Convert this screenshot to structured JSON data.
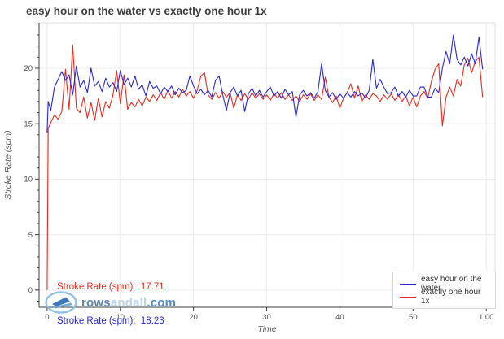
{
  "title": "easy hour on the water vs exactly one hour 1x",
  "colors": {
    "blue_series": "#2828d7",
    "red_series": "#ea2a1e",
    "gridline": "#ececec",
    "plot_border": "#e2e2e2",
    "axis_line": "#3c3c3c",
    "tick_label": "#4c4c4c"
  },
  "y_axis": {
    "label": "Stroke Rate (spm)",
    "major_tick_values": [
      0,
      5,
      10,
      15,
      20
    ],
    "major_tick_labels": [
      "0",
      "5",
      "10",
      "15",
      "20"
    ],
    "minor_tick_step": 1
  },
  "x_axis": {
    "label": "Time",
    "major_tick_values": [
      0,
      10,
      20,
      30,
      40,
      50,
      60
    ],
    "major_tick_labels": [
      "0",
      "10",
      "20",
      "30",
      "40",
      "50",
      "1:00"
    ]
  },
  "annotations": [
    {
      "text": "Stroke Rate (spm):  17.71",
      "series": "exactly one hour 1x",
      "color": "#ea2a1e"
    },
    {
      "text": "Stroke Rate (spm):  18.23",
      "series": "easy hour on the water",
      "color": "#2828d7"
    }
  ],
  "legend": {
    "items": [
      {
        "label": "easy hour on the water",
        "color": "#2828d7"
      },
      {
        "label": "exactly one hour 1x",
        "color": "#ea2a1e"
      }
    ]
  },
  "watermark": {
    "rows": "rows",
    "andall": "andall",
    "com": ".com"
  },
  "chart_data": {
    "type": "line",
    "title": "easy hour on the water vs exactly one hour 1x",
    "xlabel": "Time",
    "ylabel": "Stroke Rate (spm)",
    "x_unit": "minutes",
    "xlim": [
      -1.1,
      61.2
    ],
    "ylim": [
      -1.55,
      24.1
    ],
    "grid": true,
    "legend_position": "bottom-right",
    "x_tick_labels": [
      "0",
      "10",
      "20",
      "30",
      "40",
      "50",
      "1:00"
    ],
    "x": [
      0,
      0.15,
      0.5,
      1,
      1.5,
      2,
      2.5,
      3,
      3.5,
      4,
      4.5,
      5,
      5.5,
      6,
      6.5,
      7,
      7.5,
      8,
      8.5,
      9,
      9.5,
      10,
      10.5,
      11,
      11.5,
      12,
      12.5,
      13,
      13.5,
      14,
      14.5,
      15,
      15.5,
      16,
      16.5,
      17,
      17.5,
      18,
      18.5,
      19,
      19.5,
      20,
      20.5,
      21,
      21.5,
      22,
      22.5,
      23,
      23.5,
      24,
      24.5,
      25,
      25.5,
      26,
      26.5,
      27,
      27.5,
      28,
      28.5,
      29,
      29.5,
      30,
      30.5,
      31,
      31.5,
      32,
      32.5,
      33,
      33.5,
      34,
      34.5,
      35,
      35.5,
      36,
      36.5,
      37,
      37.5,
      38,
      38.5,
      39,
      39.5,
      40,
      40.5,
      41,
      41.5,
      42,
      42.5,
      43,
      43.5,
      44,
      44.5,
      45,
      45.5,
      46,
      46.5,
      47,
      47.5,
      48,
      48.5,
      49,
      49.5,
      50,
      50.5,
      51,
      51.5,
      52,
      52.5,
      53,
      53.5,
      54,
      54.5,
      55,
      55.5,
      56,
      56.5,
      57,
      57.5,
      58,
      58.5,
      59,
      59.5
    ],
    "series": [
      {
        "name": "easy hour on the water",
        "color": "#2828d7",
        "average_spm": 18.23,
        "values": [
          14.2,
          17.0,
          16.2,
          18.3,
          19.0,
          19.7,
          18.9,
          19.4,
          17.6,
          20.2,
          18.3,
          18.9,
          17.8,
          20.0,
          18.4,
          18.8,
          17.9,
          19.1,
          18.3,
          18.7,
          17.9,
          19.8,
          18.5,
          19.1,
          18.3,
          19.3,
          18.1,
          18.5,
          17.5,
          18.8,
          18.2,
          18.4,
          17.7,
          18.3,
          17.9,
          18.4,
          17.6,
          18.2,
          17.8,
          18.0,
          19.3,
          18.4,
          17.7,
          18.1,
          17.6,
          18.0,
          17.4,
          18.9,
          19.3,
          17.6,
          16.2,
          17.8,
          18.3,
          17.5,
          18.0,
          16.1,
          17.7,
          18.2,
          17.5,
          18.0,
          17.4,
          17.9,
          18.3,
          17.5,
          17.9,
          17.3,
          18.1,
          17.6,
          17.9,
          15.6,
          17.6,
          18.0,
          17.5,
          17.8,
          17.3,
          17.9,
          20.4,
          18.0,
          17.4,
          17.8,
          17.2,
          17.7,
          17.3,
          17.8,
          17.4,
          17.9,
          17.5,
          17.8,
          17.3,
          18.0,
          20.8,
          18.2,
          19.0,
          18.3,
          17.7,
          17.8,
          18.3,
          17.5,
          17.9,
          17.4,
          18.0,
          17.5,
          17.5,
          18.3,
          18.3,
          17.4,
          17.4,
          18.2,
          17.8,
          20.0,
          21.5,
          20.4,
          23.0,
          20.8,
          20.3,
          21.0,
          20.2,
          21.3,
          20.4,
          22.8,
          19.9
        ]
      },
      {
        "name": "exactly one hour 1x",
        "color": "#ea2a1e",
        "average_spm": 17.71,
        "values": [
          0,
          14.6,
          15.1,
          15.8,
          15.4,
          16.1,
          19.9,
          16.3,
          22.1,
          16.4,
          16.0,
          17.4,
          15.5,
          16.9,
          15.3,
          17.3,
          15.6,
          17.0,
          16.4,
          17.6,
          19.8,
          16.8,
          19.4,
          16.3,
          16.9,
          16.5,
          17.2,
          16.6,
          17.4,
          17.0,
          17.6,
          17.1,
          17.8,
          17.2,
          18.0,
          17.3,
          17.9,
          17.4,
          18.1,
          17.5,
          17.9,
          17.3,
          18.0,
          19.3,
          19.6,
          17.6,
          17.2,
          17.8,
          17.3,
          17.9,
          17.4,
          17.8,
          16.4,
          17.6,
          17.1,
          17.7,
          17.2,
          17.8,
          17.3,
          17.7,
          17.2,
          17.6,
          17.1,
          17.7,
          17.3,
          17.8,
          17.2,
          17.6,
          17.1,
          17.5,
          17.0,
          17.6,
          17.2,
          17.7,
          17.1,
          17.6,
          17.2,
          19.2,
          17.4,
          16.9,
          17.5,
          16.4,
          17.3,
          17.8,
          18.6,
          17.3,
          18.4,
          17.0,
          17.6,
          17.2,
          17.7,
          17.5,
          17.0,
          17.6,
          17.2,
          17.7,
          17.1,
          17.6,
          17.0,
          17.5,
          16.6,
          17.4,
          16.5,
          17.5,
          17.9,
          17.3,
          18.8,
          19.9,
          20.4,
          14.8,
          17.4,
          18.3,
          17.5,
          19.0,
          18.4,
          20.3,
          20.9,
          19.6,
          20.6,
          21.0,
          17.4
        ]
      }
    ]
  }
}
